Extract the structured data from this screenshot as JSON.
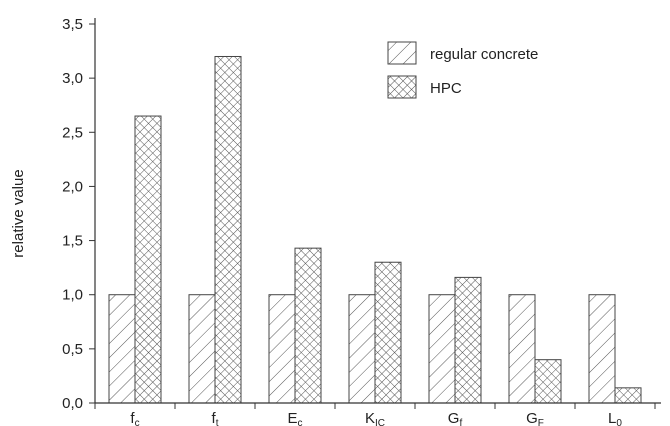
{
  "chart_data": {
    "type": "bar",
    "title": "",
    "xlabel": "",
    "ylabel": "relative value",
    "ylim": [
      0,
      3.5
    ],
    "yticks": [
      "0,0",
      "0,5",
      "1,0",
      "1,5",
      "2,0",
      "2,5",
      "3,0",
      "3,5"
    ],
    "categories": [
      {
        "main": "f",
        "sub": "c"
      },
      {
        "main": "f",
        "sub": "t"
      },
      {
        "main": "E",
        "sub": "c"
      },
      {
        "main": "K",
        "sub": "IC"
      },
      {
        "main": "G",
        "sub": "f"
      },
      {
        "main": "G",
        "sub": "F"
      },
      {
        "main": "L",
        "sub": "0"
      }
    ],
    "series": [
      {
        "name": "regular concrete",
        "pattern": "diagonal-hatch",
        "values": [
          1.0,
          1.0,
          1.0,
          1.0,
          1.0,
          1.0,
          1.0
        ]
      },
      {
        "name": "HPC",
        "pattern": "cross-hatch",
        "values": [
          2.65,
          3.2,
          1.43,
          1.3,
          1.16,
          0.4,
          0.14
        ]
      }
    ],
    "legend_position": "top-right",
    "grid": false,
    "colors": {
      "bar_fill": "#ffffff",
      "hatch": "#555555",
      "axis": "#333333"
    }
  }
}
